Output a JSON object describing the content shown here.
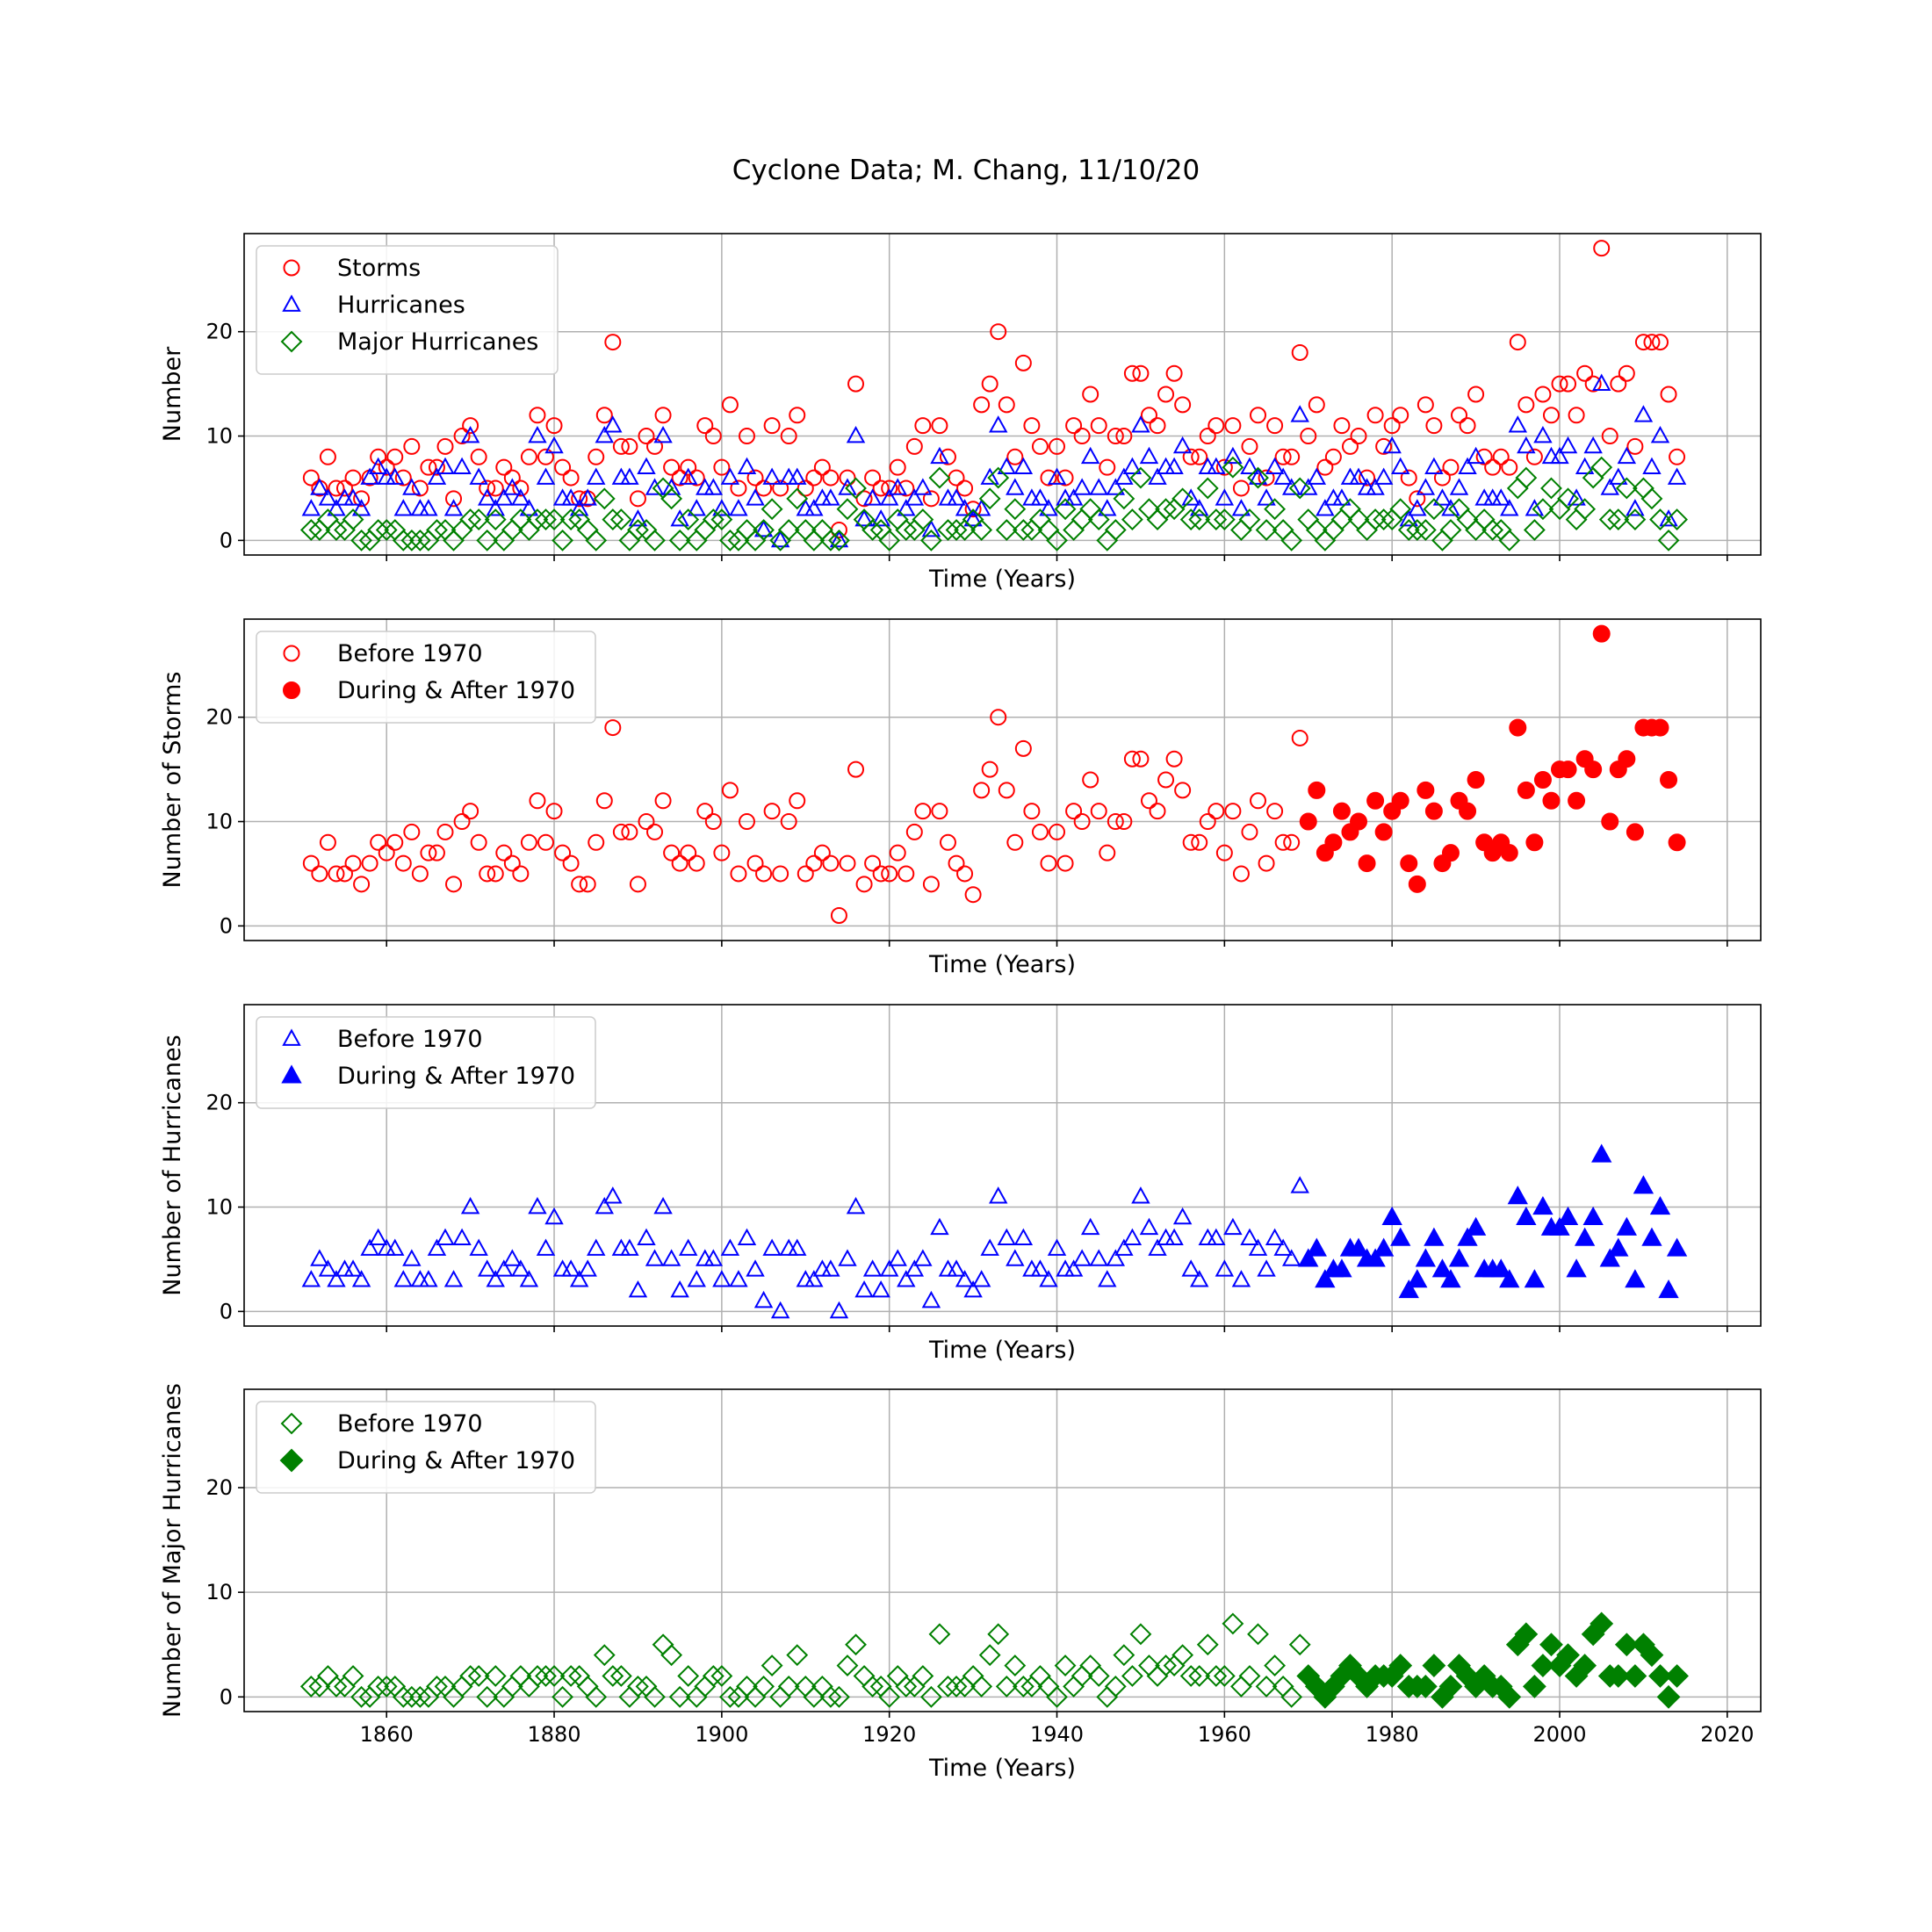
{
  "figure": {
    "title": "Cyclone Data; M. Chang, 11/10/20"
  },
  "colors": {
    "storms": "#ff0000",
    "hurricanes": "#0000ff",
    "major": "#008000",
    "grid": "#b0b0b0"
  },
  "chart_data": [
    {
      "type": "scatter",
      "xlabel": "Time (Years)",
      "ylabel": "Number",
      "xlim": [
        1843,
        2024
      ],
      "ylim": [
        -1.4,
        29.4
      ],
      "xticks": [
        1860,
        1880,
        1900,
        1920,
        1940,
        1960,
        1980,
        2000,
        2020
      ],
      "xticklabels": [],
      "yticks": [
        0,
        10,
        20
      ],
      "yticklabels": [
        "0",
        "10",
        "20"
      ],
      "grid": true,
      "legend_position": "top-left",
      "series": [
        {
          "name": "Storms",
          "marker": "circle",
          "filled": false,
          "color": "#ff0000",
          "source": "storms",
          "from": 1851,
          "to": 2014
        },
        {
          "name": "Hurricanes",
          "marker": "triangle",
          "filled": false,
          "color": "#0000ff",
          "source": "hurricanes",
          "from": 1851,
          "to": 2014
        },
        {
          "name": "Major Hurricanes",
          "marker": "diamond",
          "filled": false,
          "color": "#008000",
          "source": "major",
          "from": 1851,
          "to": 2014
        }
      ]
    },
    {
      "type": "scatter",
      "xlabel": "Time (Years)",
      "ylabel": "Number of Storms",
      "xlim": [
        1843,
        2024
      ],
      "ylim": [
        -1.4,
        29.4
      ],
      "xticks": [
        1860,
        1880,
        1900,
        1920,
        1940,
        1960,
        1980,
        2000,
        2020
      ],
      "xticklabels": [],
      "yticks": [
        0,
        10,
        20
      ],
      "yticklabels": [
        "0",
        "10",
        "20"
      ],
      "grid": true,
      "legend_position": "top-left",
      "series": [
        {
          "name": "Before 1970",
          "marker": "circle",
          "filled": false,
          "color": "#ff0000",
          "source": "storms",
          "from": 1851,
          "to": 1969
        },
        {
          "name": "During & After 1970",
          "marker": "circle",
          "filled": true,
          "color": "#ff0000",
          "source": "storms",
          "from": 1970,
          "to": 2014
        }
      ]
    },
    {
      "type": "scatter",
      "xlabel": "Time (Years)",
      "ylabel": "Number of Hurricanes",
      "xlim": [
        1843,
        2024
      ],
      "ylim": [
        -1.4,
        29.4
      ],
      "xticks": [
        1860,
        1880,
        1900,
        1920,
        1940,
        1960,
        1980,
        2000,
        2020
      ],
      "xticklabels": [],
      "yticks": [
        0,
        10,
        20
      ],
      "yticklabels": [
        "0",
        "10",
        "20"
      ],
      "grid": true,
      "legend_position": "top-left",
      "series": [
        {
          "name": "Before 1970",
          "marker": "triangle",
          "filled": false,
          "color": "#0000ff",
          "source": "hurricanes",
          "from": 1851,
          "to": 1969
        },
        {
          "name": "During & After 1970",
          "marker": "triangle",
          "filled": true,
          "color": "#0000ff",
          "source": "hurricanes",
          "from": 1970,
          "to": 2014
        }
      ]
    },
    {
      "type": "scatter",
      "xlabel": "Time (Years)",
      "ylabel": "Number of Major Hurricanes",
      "xlim": [
        1843,
        2024
      ],
      "ylim": [
        -1.4,
        29.4
      ],
      "xticks": [
        1860,
        1880,
        1900,
        1920,
        1940,
        1960,
        1980,
        2000,
        2020
      ],
      "xticklabels": [
        "1860",
        "1880",
        "1900",
        "1920",
        "1940",
        "1960",
        "1980",
        "2000",
        "2020"
      ],
      "yticks": [
        0,
        10,
        20
      ],
      "yticklabels": [
        "0",
        "10",
        "20"
      ],
      "grid": true,
      "legend_position": "top-left",
      "series": [
        {
          "name": "Before 1970",
          "marker": "diamond",
          "filled": false,
          "color": "#008000",
          "source": "major",
          "from": 1851,
          "to": 1969
        },
        {
          "name": "During & After 1970",
          "marker": "diamond",
          "filled": true,
          "color": "#008000",
          "source": "major",
          "from": 1970,
          "to": 2014
        }
      ]
    }
  ],
  "annual_counts": {
    "years": [
      1851,
      1852,
      1853,
      1854,
      1855,
      1856,
      1857,
      1858,
      1859,
      1860,
      1861,
      1862,
      1863,
      1864,
      1865,
      1866,
      1867,
      1868,
      1869,
      1870,
      1871,
      1872,
      1873,
      1874,
      1875,
      1876,
      1877,
      1878,
      1879,
      1880,
      1881,
      1882,
      1883,
      1884,
      1885,
      1886,
      1887,
      1888,
      1889,
      1890,
      1891,
      1892,
      1893,
      1894,
      1895,
      1896,
      1897,
      1898,
      1899,
      1900,
      1901,
      1902,
      1903,
      1904,
      1905,
      1906,
      1907,
      1908,
      1909,
      1910,
      1911,
      1912,
      1913,
      1914,
      1915,
      1916,
      1917,
      1918,
      1919,
      1920,
      1921,
      1922,
      1923,
      1924,
      1925,
      1926,
      1927,
      1928,
      1929,
      1930,
      1931,
      1932,
      1933,
      1934,
      1935,
      1936,
      1937,
      1938,
      1939,
      1940,
      1941,
      1942,
      1943,
      1944,
      1945,
      1946,
      1947,
      1948,
      1949,
      1950,
      1951,
      1952,
      1953,
      1954,
      1955,
      1956,
      1957,
      1958,
      1959,
      1960,
      1961,
      1962,
      1963,
      1964,
      1965,
      1966,
      1967,
      1968,
      1969,
      1970,
      1971,
      1972,
      1973,
      1974,
      1975,
      1976,
      1977,
      1978,
      1979,
      1980,
      1981,
      1982,
      1983,
      1984,
      1985,
      1986,
      1987,
      1988,
      1989,
      1990,
      1991,
      1992,
      1993,
      1994,
      1995,
      1996,
      1997,
      1998,
      1999,
      2000,
      2001,
      2002,
      2003,
      2004,
      2005,
      2006,
      2007,
      2008,
      2009,
      2010,
      2011,
      2012,
      2013,
      2014
    ],
    "storms": [
      6,
      5,
      8,
      5,
      5,
      6,
      4,
      6,
      8,
      7,
      8,
      6,
      9,
      5,
      7,
      7,
      9,
      4,
      10,
      11,
      8,
      5,
      5,
      7,
      6,
      5,
      8,
      12,
      8,
      11,
      7,
      6,
      4,
      4,
      8,
      12,
      19,
      9,
      9,
      4,
      10,
      9,
      12,
      7,
      6,
      7,
      6,
      11,
      10,
      7,
      13,
      5,
      10,
      6,
      5,
      11,
      5,
      10,
      12,
      5,
      6,
      7,
      6,
      1,
      6,
      15,
      4,
      6,
      5,
      5,
      7,
      5,
      9,
      11,
      4,
      11,
      8,
      6,
      5,
      3,
      13,
      15,
      20,
      13,
      8,
      17,
      11,
      9,
      6,
      9,
      6,
      11,
      10,
      14,
      11,
      7,
      10,
      10,
      16,
      16,
      12,
      11,
      14,
      16,
      13,
      8,
      8,
      10,
      11,
      7,
      11,
      5,
      9,
      12,
      6,
      11,
      8,
      8,
      18,
      10,
      13,
      7,
      8,
      11,
      9,
      10,
      6,
      12,
      9,
      11,
      12,
      6,
      4,
      13,
      11,
      6,
      7,
      12,
      11,
      14,
      8,
      7,
      8,
      7,
      19,
      13,
      8,
      14,
      12,
      15,
      15,
      12,
      16,
      15,
      28,
      10,
      15,
      16,
      9,
      19,
      19,
      19,
      14,
      8
    ],
    "hurricanes": [
      3,
      5,
      4,
      3,
      4,
      4,
      3,
      6,
      7,
      6,
      6,
      3,
      5,
      3,
      3,
      6,
      7,
      3,
      7,
      10,
      6,
      4,
      3,
      4,
      5,
      4,
      3,
      10,
      6,
      9,
      4,
      4,
      3,
      4,
      6,
      10,
      11,
      6,
      6,
      2,
      7,
      5,
      10,
      5,
      2,
      6,
      3,
      5,
      5,
      3,
      6,
      3,
      7,
      4,
      1,
      6,
      0,
      6,
      6,
      3,
      3,
      4,
      4,
      0,
      5,
      10,
      2,
      4,
      2,
      4,
      5,
      3,
      4,
      5,
      1,
      8,
      4,
      4,
      3,
      2,
      3,
      6,
      11,
      7,
      5,
      7,
      4,
      4,
      3,
      6,
      4,
      4,
      5,
      8,
      5,
      3,
      5,
      6,
      7,
      11,
      8,
      6,
      7,
      7,
      9,
      4,
      3,
      7,
      7,
      4,
      8,
      3,
      7,
      6,
      4,
      7,
      6,
      5,
      12,
      5,
      6,
      3,
      4,
      4,
      6,
      6,
      5,
      5,
      6,
      9,
      7,
      2,
      3,
      5,
      7,
      4,
      3,
      5,
      7,
      8,
      4,
      4,
      4,
      3,
      11,
      9,
      3,
      10,
      8,
      8,
      9,
      4,
      7,
      9,
      15,
      5,
      6,
      8,
      3,
      12,
      7,
      10,
      2,
      6
    ],
    "major": [
      1,
      1,
      2,
      1,
      1,
      2,
      0,
      0,
      1,
      1,
      1,
      0,
      0,
      0,
      0,
      1,
      1,
      0,
      1,
      2,
      2,
      0,
      2,
      0,
      1,
      2,
      1,
      2,
      2,
      2,
      0,
      2,
      2,
      1,
      0,
      4,
      2,
      2,
      0,
      1,
      1,
      0,
      5,
      4,
      0,
      2,
      0,
      1,
      2,
      2,
      0,
      0,
      1,
      0,
      1,
      3,
      0,
      1,
      4,
      1,
      0,
      1,
      0,
      0,
      3,
      5,
      2,
      1,
      1,
      0,
      2,
      1,
      1,
      2,
      0,
      6,
      1,
      1,
      1,
      2,
      1,
      4,
      6,
      1,
      3,
      1,
      1,
      2,
      1,
      0,
      3,
      1,
      2,
      3,
      2,
      0,
      1,
      4,
      2,
      6,
      3,
      2,
      3,
      3,
      4,
      2,
      2,
      5,
      2,
      2,
      7,
      1,
      2,
      6,
      1,
      3,
      1,
      0,
      5,
      2,
      1,
      0,
      1,
      2,
      3,
      2,
      1,
      2,
      2,
      2,
      3,
      1,
      1,
      1,
      3,
      0,
      1,
      3,
      2,
      1,
      2,
      1,
      1,
      0,
      5,
      6,
      1,
      3,
      5,
      3,
      4,
      2,
      3,
      6,
      7,
      2,
      2,
      5,
      2,
      5,
      4,
      2,
      0,
      2
    ]
  }
}
